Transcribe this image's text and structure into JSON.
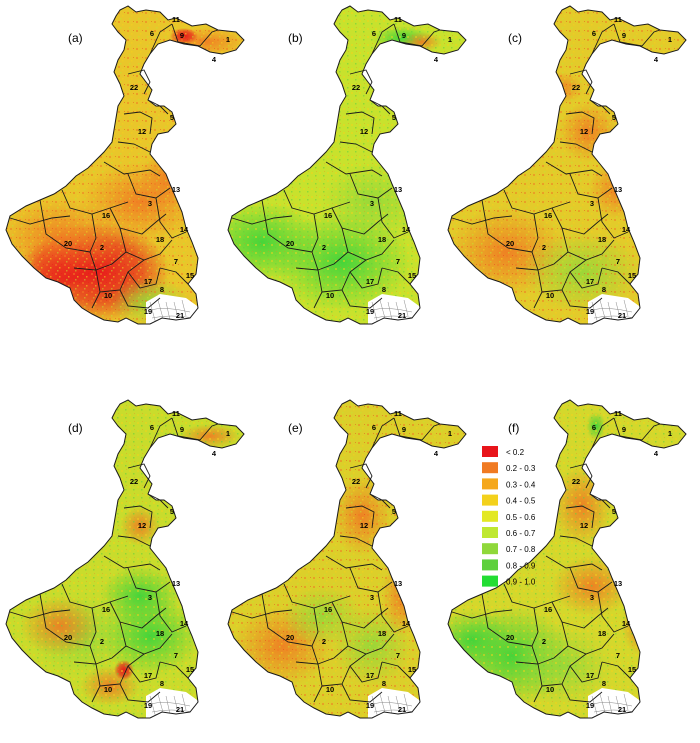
{
  "panels": [
    {
      "letter": "(a)",
      "scheme": "low"
    },
    {
      "letter": "(b)",
      "scheme": "high"
    },
    {
      "letter": "(c)",
      "scheme": "midlow"
    },
    {
      "letter": "(d)",
      "scheme": "mixed"
    },
    {
      "letter": "(e)",
      "scheme": "mid"
    },
    {
      "letter": "(f)",
      "scheme": "west-high"
    }
  ],
  "districts": [
    {
      "num": "11"
    },
    {
      "num": "6"
    },
    {
      "num": "9"
    },
    {
      "num": "1"
    },
    {
      "num": "4"
    },
    {
      "num": "22"
    },
    {
      "num": "5"
    },
    {
      "num": "12"
    },
    {
      "num": "13"
    },
    {
      "num": "3"
    },
    {
      "num": "16"
    },
    {
      "num": "14"
    },
    {
      "num": "20"
    },
    {
      "num": "2"
    },
    {
      "num": "18"
    },
    {
      "num": "7"
    },
    {
      "num": "15"
    },
    {
      "num": "17"
    },
    {
      "num": "8"
    },
    {
      "num": "10"
    },
    {
      "num": "19"
    },
    {
      "num": "21"
    }
  ],
  "legend": {
    "items": [
      {
        "label": "< 0.2",
        "color": "#e8141a"
      },
      {
        "label": "0.2 - 0.3",
        "color": "#f07a22"
      },
      {
        "label": "0.3 - 0.4",
        "color": "#f5a81c"
      },
      {
        "label": "0.4 - 0.5",
        "color": "#f3d11c"
      },
      {
        "label": "0.5 - 0.6",
        "color": "#e3e823"
      },
      {
        "label": "0.6 - 0.7",
        "color": "#bfe830"
      },
      {
        "label": "0.7 - 0.8",
        "color": "#8fd83a"
      },
      {
        "label": "0.8 - 0.9",
        "color": "#5fd03e"
      },
      {
        "label": "0.9 - 1.0",
        "color": "#22dd33"
      }
    ]
  }
}
